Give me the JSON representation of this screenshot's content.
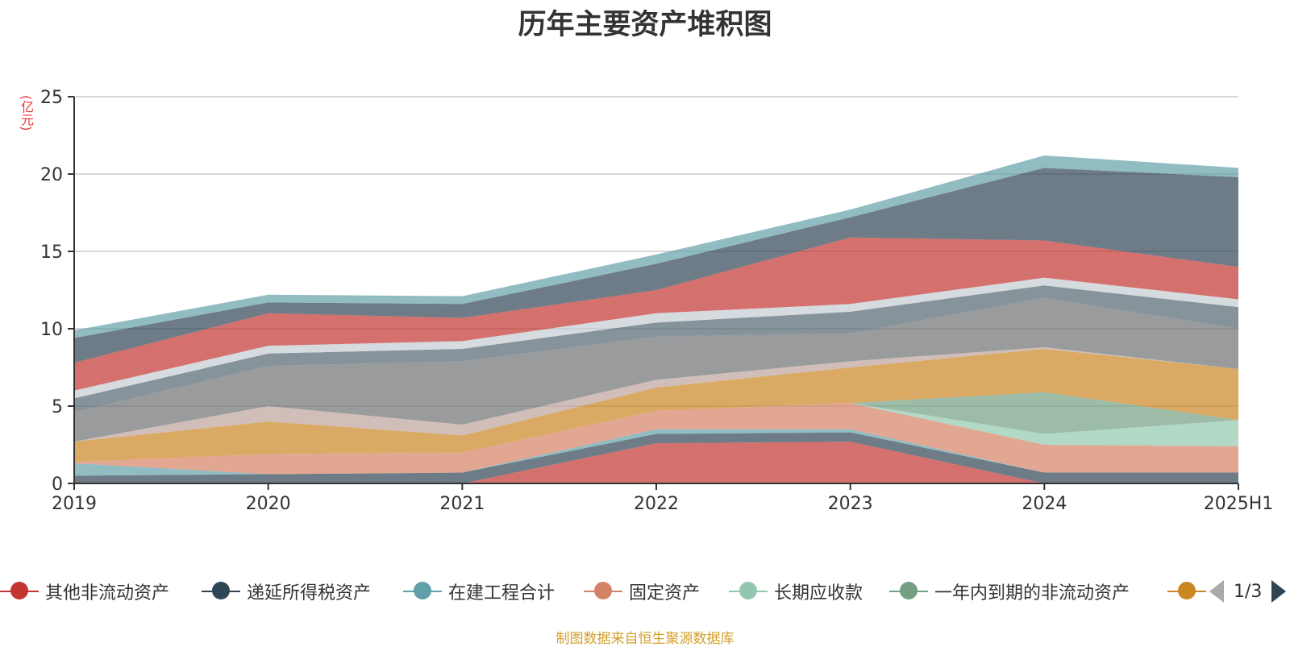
{
  "chart_data": {
    "type": "area",
    "title": "历年主要资产堆积图",
    "ylabel": "(亿元)",
    "xlabel": "",
    "ylim": [
      0,
      25
    ],
    "yticks": [
      0,
      5,
      10,
      15,
      20,
      25
    ],
    "categories": [
      "2019",
      "2020",
      "2021",
      "2022",
      "2023",
      "2024",
      "2025H1"
    ],
    "stacked": true,
    "grid": true,
    "legend_position": "bottom",
    "series": [
      {
        "name": "其他非流动资产",
        "color": "#c23531",
        "values": [
          0,
          0,
          0,
          2.6,
          2.7,
          0,
          0
        ]
      },
      {
        "name": "递延所得税资产",
        "color": "#2f4554",
        "values": [
          0.5,
          0.6,
          0.7,
          0.6,
          0.6,
          0.7,
          0.7
        ]
      },
      {
        "name": "在建工程合计",
        "color": "#61a0a8",
        "values": [
          0.8,
          0,
          0,
          0.3,
          0.2,
          0,
          0
        ]
      },
      {
        "name": "固定资产",
        "color": "#d48265",
        "values": [
          0.1,
          1.3,
          1.3,
          1.2,
          1.7,
          1.8,
          1.7
        ]
      },
      {
        "name": "长期应收款",
        "color": "#91c7ae",
        "values": [
          0,
          0,
          0,
          0,
          0,
          0.7,
          1.7
        ]
      },
      {
        "name": "一年内到期的非流动资产",
        "color": "#749f83",
        "values": [
          0,
          0,
          0,
          0,
          0,
          2.7,
          0
        ]
      },
      {
        "name": "",
        "color": "#ca8622",
        "values": [
          1.3,
          2.1,
          1.1,
          1.5,
          2.3,
          2.8,
          3.3
        ]
      },
      {
        "name": "",
        "color": "#bda29a",
        "values": [
          0,
          1.0,
          0.7,
          0.5,
          0.4,
          0.1,
          0
        ]
      },
      {
        "name": "",
        "color": "#6e7074",
        "values": [
          1.9,
          2.6,
          4.1,
          2.8,
          1.8,
          3.2,
          2.6
        ]
      },
      {
        "name": "",
        "color": "#546570",
        "values": [
          0.9,
          0.8,
          0.8,
          0.9,
          1.4,
          0.8,
          1.4
        ]
      },
      {
        "name": "",
        "color": "#c4ccd3",
        "values": [
          0.5,
          0.5,
          0.5,
          0.6,
          0.5,
          0.5,
          0.5
        ]
      },
      {
        "name": "",
        "color": "#c23531",
        "values": [
          1.8,
          2.1,
          1.5,
          1.5,
          4.3,
          2.4,
          2.1
        ]
      },
      {
        "name": "",
        "color": "#2f4554",
        "values": [
          1.6,
          0.7,
          0.9,
          1.7,
          1.3,
          4.7,
          5.8
        ]
      },
      {
        "name": "",
        "color": "#61a0a8",
        "values": [
          0.5,
          0.5,
          0.5,
          0.6,
          0.5,
          0.8,
          0.6
        ]
      }
    ]
  },
  "legend": {
    "visible_items": [
      {
        "label": "其他非流动资产",
        "color": "#c23531"
      },
      {
        "label": "递延所得税资产",
        "color": "#2f4554"
      },
      {
        "label": "在建工程合计",
        "color": "#61a0a8"
      },
      {
        "label": "固定资产",
        "color": "#d48265"
      },
      {
        "label": "长期应收款",
        "color": "#91c7ae"
      },
      {
        "label": "一年内到期的非流动资产",
        "color": "#749f83"
      },
      {
        "label": "",
        "color": "#ca8622"
      }
    ],
    "page_text": "1/3"
  },
  "source": "制图数据来自恒生聚源数据库"
}
